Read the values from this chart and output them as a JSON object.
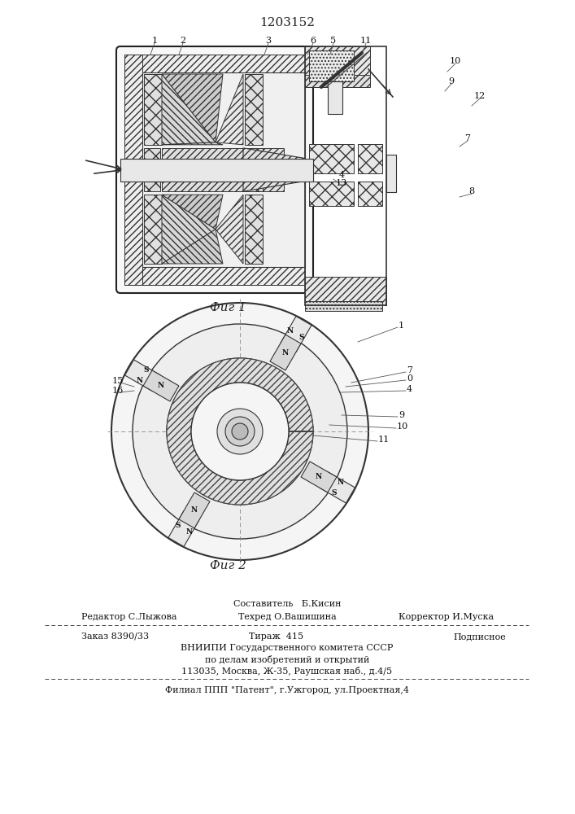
{
  "patent_number": "1203152",
  "bg_color": "#ffffff",
  "fig1_caption": "Фиг 1",
  "fig2_caption": "Фиг 2",
  "footer": {
    "line1": "Составитель   Б.Кисин",
    "line2_left": "Редактор С.Лыжова",
    "line2_center": "Техред О.Вашишина",
    "line2_right": "Корректор И.Муска",
    "line3_left": "Заказ 8390/33",
    "line3_center": "Тираж  415",
    "line3_right": "Подписное",
    "line4": "ВНИИПИ Государственного комитета СССР",
    "line5": "по делам изобретений и открытий",
    "line6": "113035, Москва, Ж-35, Раушская наб., д.4/5",
    "line7": "Филиал ППП \"Патент\", г.Ужгород, ул.Проектная,4"
  }
}
